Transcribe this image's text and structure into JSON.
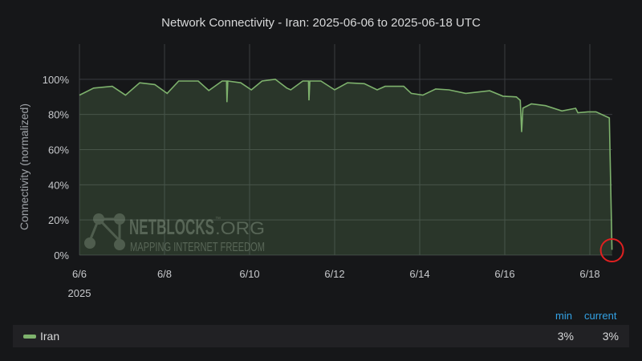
{
  "title": "Network Connectivity - Iran: 2025-06-06 to 2025-06-18 UTC",
  "chart_data": {
    "type": "area",
    "title": "Network Connectivity - Iran: 2025-06-06 to 2025-06-18 UTC",
    "xlabel": "",
    "ylabel": "Connectivity (normalized)",
    "ylim": [
      0,
      120
    ],
    "yticks": [
      "0%",
      "20%",
      "40%",
      "60%",
      "80%",
      "100%"
    ],
    "ytick_values": [
      0,
      20,
      40,
      60,
      80,
      100
    ],
    "xlim": [
      "2025-06-06T00:00",
      "2025-06-18T13:00"
    ],
    "xticks": [
      "6/6",
      "6/8",
      "6/10",
      "6/12",
      "6/14",
      "6/16",
      "6/18"
    ],
    "xtick_dates": [
      "2025-06-06",
      "2025-06-08",
      "2025-06-10",
      "2025-06-12",
      "2025-06-14",
      "2025-06-16",
      "2025-06-18"
    ],
    "xtick_year": "2025",
    "grid": true,
    "legend": "bottom",
    "series": [
      {
        "name": "Iran",
        "color": "#7eb26d",
        "x": [
          "2025-06-06T00:00",
          "2025-06-06T08:00",
          "2025-06-06T18:30",
          "2025-06-07T02:00",
          "2025-06-07T10:00",
          "2025-06-07T18:30",
          "2025-06-08T01:30",
          "2025-06-08T08:00",
          "2025-06-08T19:00",
          "2025-06-09T01:00",
          "2025-06-09T08:30",
          "2025-06-09T11:00",
          "2025-06-09T11:15",
          "2025-06-09T11:45",
          "2025-06-09T19:00",
          "2025-06-10T01:00",
          "2025-06-10T07:00",
          "2025-06-10T14:30",
          "2025-06-10T21:00",
          "2025-06-10T23:15",
          "2025-06-11T06:00",
          "2025-06-11T09:15",
          "2025-06-11T09:30",
          "2025-06-11T10:00",
          "2025-06-11T16:15",
          "2025-06-12T00:00",
          "2025-06-12T07:15",
          "2025-06-12T16:45",
          "2025-06-13T00:00",
          "2025-06-13T04:30",
          "2025-06-13T15:00",
          "2025-06-13T19:15",
          "2025-06-14T01:45",
          "2025-06-14T09:00",
          "2025-06-14T16:30",
          "2025-06-15T02:00",
          "2025-06-15T15:30",
          "2025-06-15T23:00",
          "2025-06-16T06:30",
          "2025-06-16T08:45",
          "2025-06-16T09:30",
          "2025-06-16T10:15",
          "2025-06-16T15:00",
          "2025-06-16T23:00",
          "2025-06-17T08:15",
          "2025-06-17T16:00",
          "2025-06-17T17:15",
          "2025-06-17T23:00",
          "2025-06-18T03:30",
          "2025-06-18T10:00",
          "2025-06-18T11:00",
          "2025-06-18T12:30"
        ],
        "y": [
          91,
          95,
          96,
          91,
          98,
          97,
          92,
          99,
          99,
          93.6,
          99,
          99,
          87,
          99,
          98,
          94,
          99,
          100,
          95,
          94,
          99,
          99,
          88,
          99,
          99,
          94,
          98,
          97.5,
          94,
          96,
          96,
          92,
          91,
          94.5,
          94,
          92,
          93.5,
          90.4,
          90,
          88,
          70,
          83.6,
          86,
          85,
          82,
          83.5,
          81,
          81.5,
          81.5,
          78.5,
          78,
          3
        ]
      }
    ],
    "annotation": {
      "type": "circle",
      "color": "#e02020",
      "target": "2025-06-18T12:30"
    }
  },
  "watermark": {
    "brand": "NETBLOCKS",
    "tm": "™",
    "suffix": ".ORG",
    "tagline": "MAPPING INTERNET FREEDOM"
  },
  "legend": {
    "headers": {
      "min": "min",
      "current": "current"
    },
    "items": [
      {
        "name": "Iran",
        "min": "3%",
        "current": "3%"
      }
    ]
  }
}
